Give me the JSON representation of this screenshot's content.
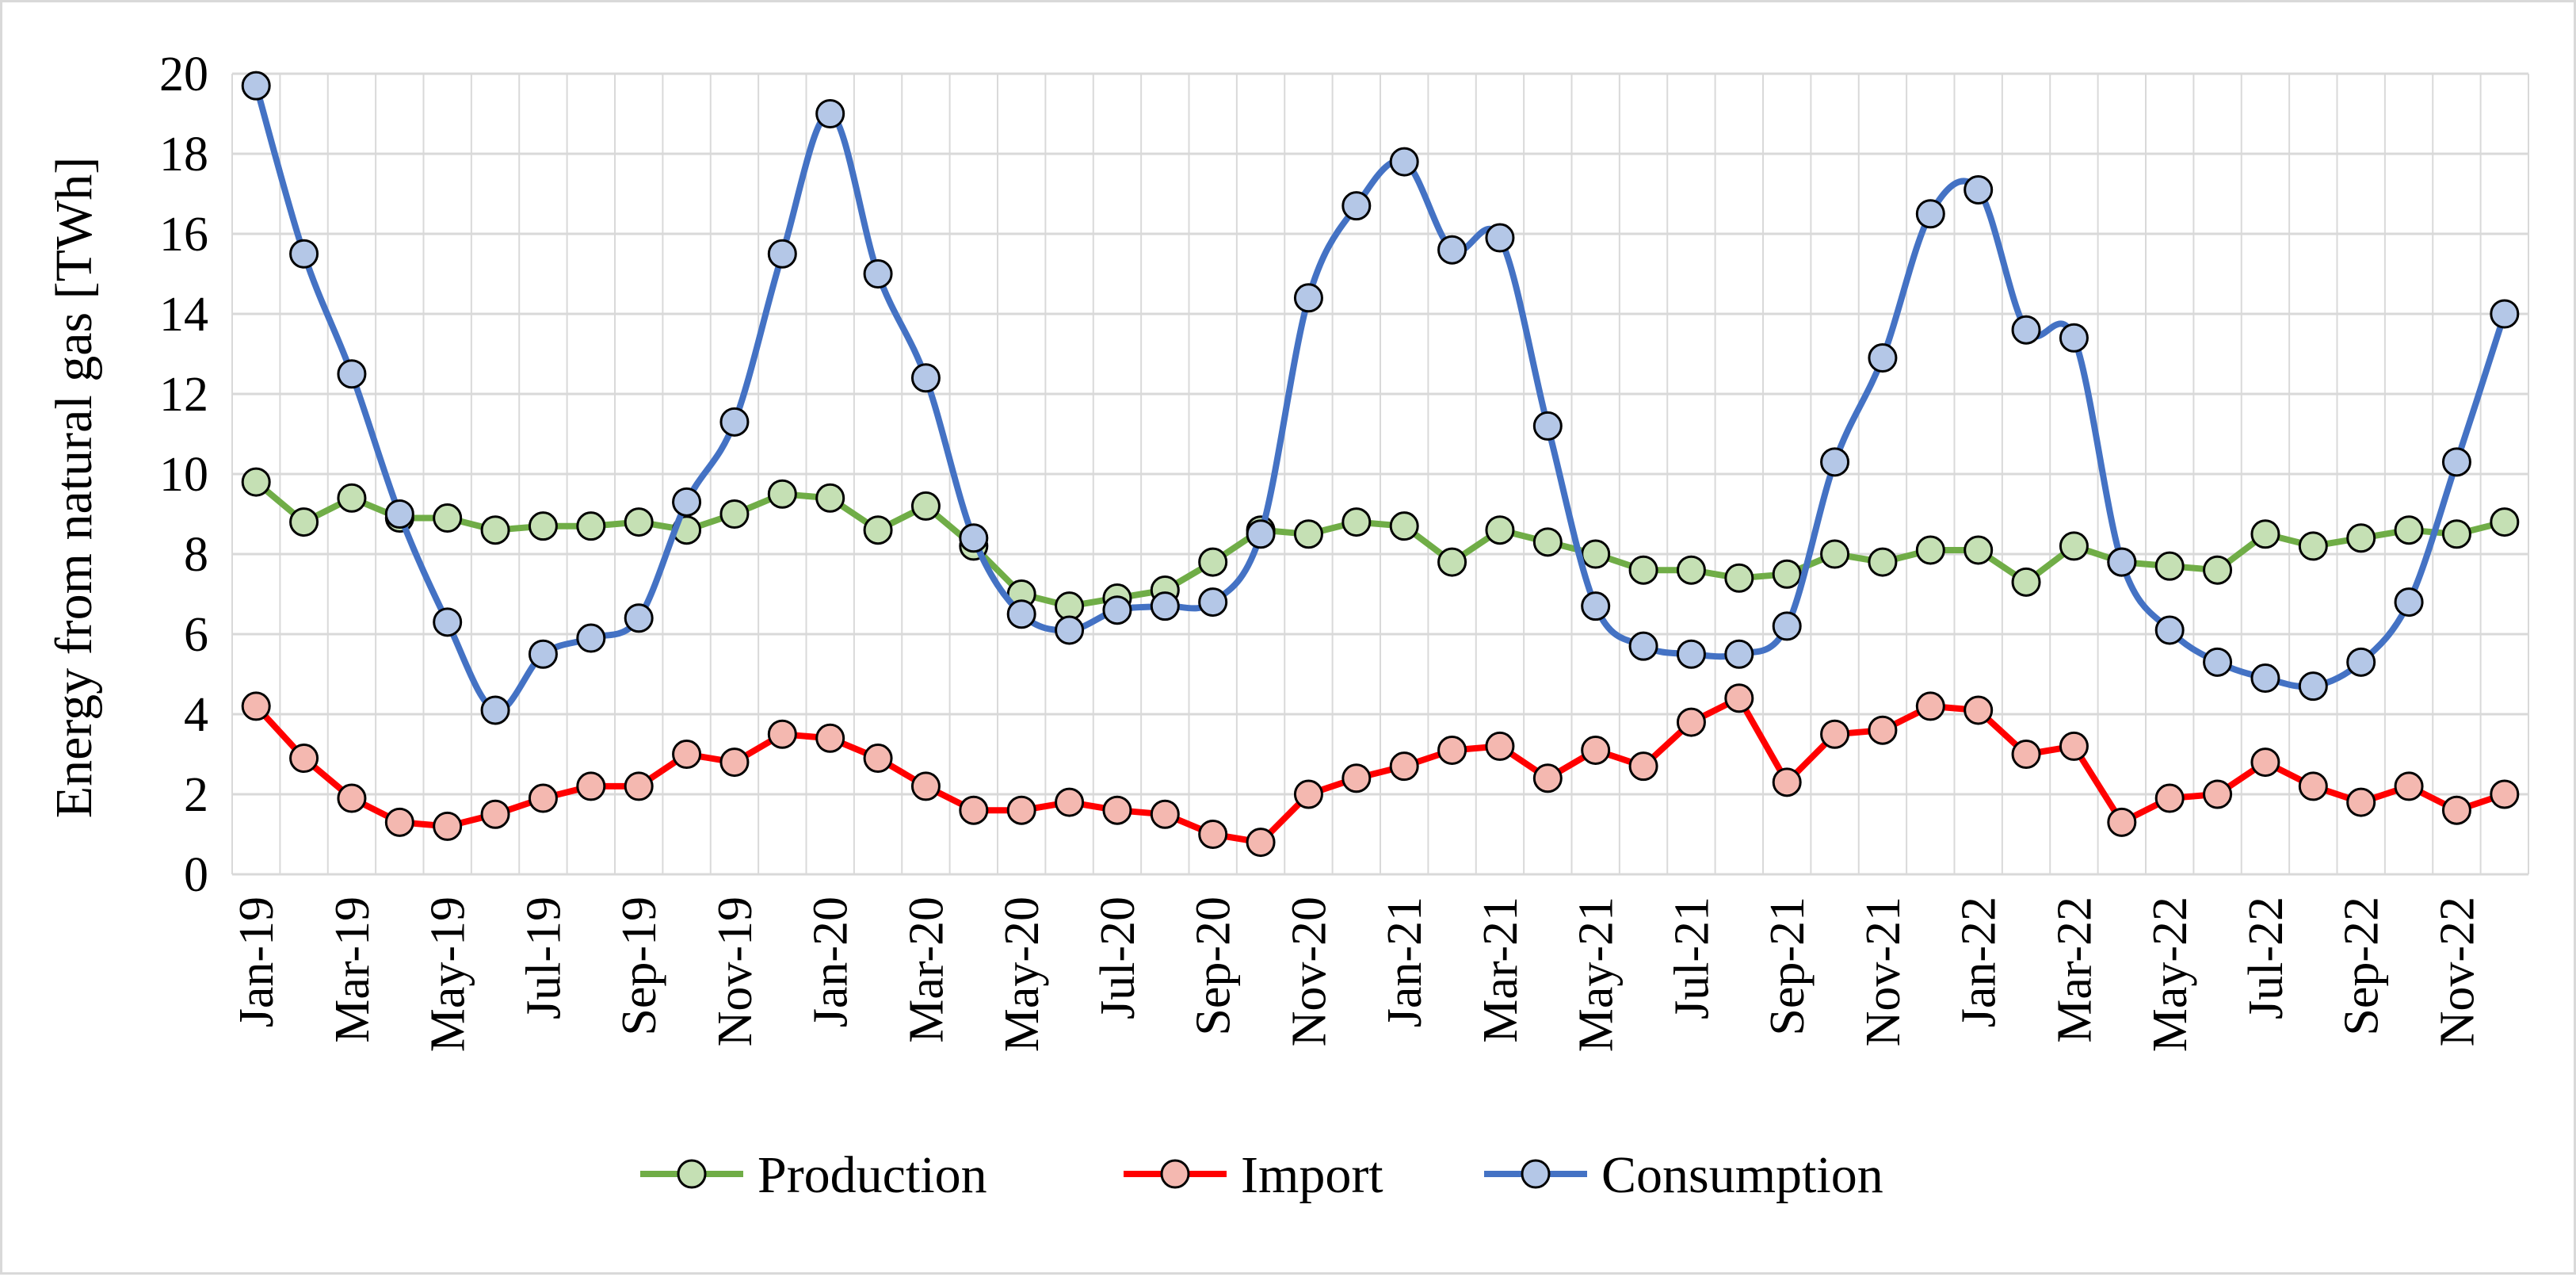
{
  "chart_data": {
    "type": "line",
    "title": "",
    "xlabel": "",
    "ylabel": "Energy from natural gas [TWh]",
    "ylim": [
      0,
      20
    ],
    "yticks": [
      0,
      2,
      4,
      6,
      8,
      10,
      12,
      14,
      16,
      18,
      20
    ],
    "grid": true,
    "legend_position": "bottom",
    "x_tick_labels": [
      "Jan-19",
      "Mar-19",
      "May-19",
      "Jul-19",
      "Sep-19",
      "Nov-19",
      "Jan-20",
      "Mar-20",
      "May-20",
      "Jul-20",
      "Sep-20",
      "Nov-20",
      "Jan-21",
      "Mar-21",
      "May-21",
      "Jul-21",
      "Sep-21",
      "Nov-21",
      "Jan-22",
      "Mar-22",
      "May-22",
      "Jul-22",
      "Sep-22",
      "Nov-22"
    ],
    "categories": [
      "Jan-19",
      "Feb-19",
      "Mar-19",
      "Apr-19",
      "May-19",
      "Jun-19",
      "Jul-19",
      "Aug-19",
      "Sep-19",
      "Oct-19",
      "Nov-19",
      "Dec-19",
      "Jan-20",
      "Feb-20",
      "Mar-20",
      "Apr-20",
      "May-20",
      "Jun-20",
      "Jul-20",
      "Aug-20",
      "Sep-20",
      "Oct-20",
      "Nov-20",
      "Dec-20",
      "Jan-21",
      "Feb-21",
      "Mar-21",
      "Apr-21",
      "May-21",
      "Jun-21",
      "Jul-21",
      "Aug-21",
      "Sep-21",
      "Oct-21",
      "Nov-21",
      "Dec-21",
      "Jan-22",
      "Feb-22",
      "Mar-22",
      "Apr-22",
      "May-22",
      "Jun-22",
      "Jul-22",
      "Aug-22",
      "Sep-22",
      "Oct-22",
      "Nov-22",
      "Dec-22"
    ],
    "series": [
      {
        "name": "Production",
        "color": "#70ad47",
        "marker_fill": "#c5e0b4",
        "values": [
          9.8,
          8.8,
          9.4,
          8.9,
          8.9,
          8.6,
          8.7,
          8.7,
          8.8,
          8.6,
          9.0,
          9.5,
          9.4,
          8.6,
          9.2,
          8.2,
          7.0,
          6.7,
          6.9,
          7.1,
          7.8,
          8.6,
          8.5,
          8.8,
          8.7,
          7.8,
          8.6,
          8.3,
          8.0,
          7.6,
          7.6,
          7.4,
          7.5,
          8.0,
          7.8,
          8.1,
          8.1,
          7.3,
          8.2,
          7.8,
          7.7,
          7.6,
          8.5,
          8.2,
          8.4,
          8.6,
          8.5,
          8.8
        ]
      },
      {
        "name": "Import",
        "color": "#ff0000",
        "marker_fill": "#f4b8b0",
        "values": [
          4.2,
          2.9,
          1.9,
          1.3,
          1.2,
          1.5,
          1.9,
          2.2,
          2.2,
          3.0,
          2.8,
          3.5,
          3.4,
          2.9,
          2.2,
          1.6,
          1.6,
          1.8,
          1.6,
          1.5,
          1.0,
          0.8,
          2.0,
          2.4,
          2.7,
          3.1,
          3.2,
          2.4,
          3.1,
          2.7,
          3.8,
          4.4,
          2.3,
          3.5,
          3.6,
          4.2,
          4.1,
          3.0,
          3.2,
          1.3,
          1.9,
          2.0,
          2.8,
          2.2,
          1.8,
          2.2,
          1.6,
          2.0
        ]
      },
      {
        "name": "Consumption",
        "color": "#4472c4",
        "marker_fill": "#b4c7e7",
        "values": [
          19.7,
          15.5,
          12.5,
          9.0,
          6.3,
          4.1,
          5.5,
          5.9,
          6.4,
          9.3,
          11.3,
          15.5,
          19.0,
          15.0,
          12.4,
          8.4,
          6.5,
          6.1,
          6.6,
          6.7,
          6.8,
          8.5,
          14.4,
          16.7,
          17.8,
          15.6,
          15.9,
          11.2,
          6.7,
          5.7,
          5.5,
          5.5,
          6.2,
          10.3,
          12.9,
          16.5,
          17.1,
          13.6,
          13.4,
          7.8,
          6.1,
          5.3,
          4.9,
          4.7,
          5.3,
          6.8,
          10.3,
          14.0
        ]
      }
    ]
  }
}
